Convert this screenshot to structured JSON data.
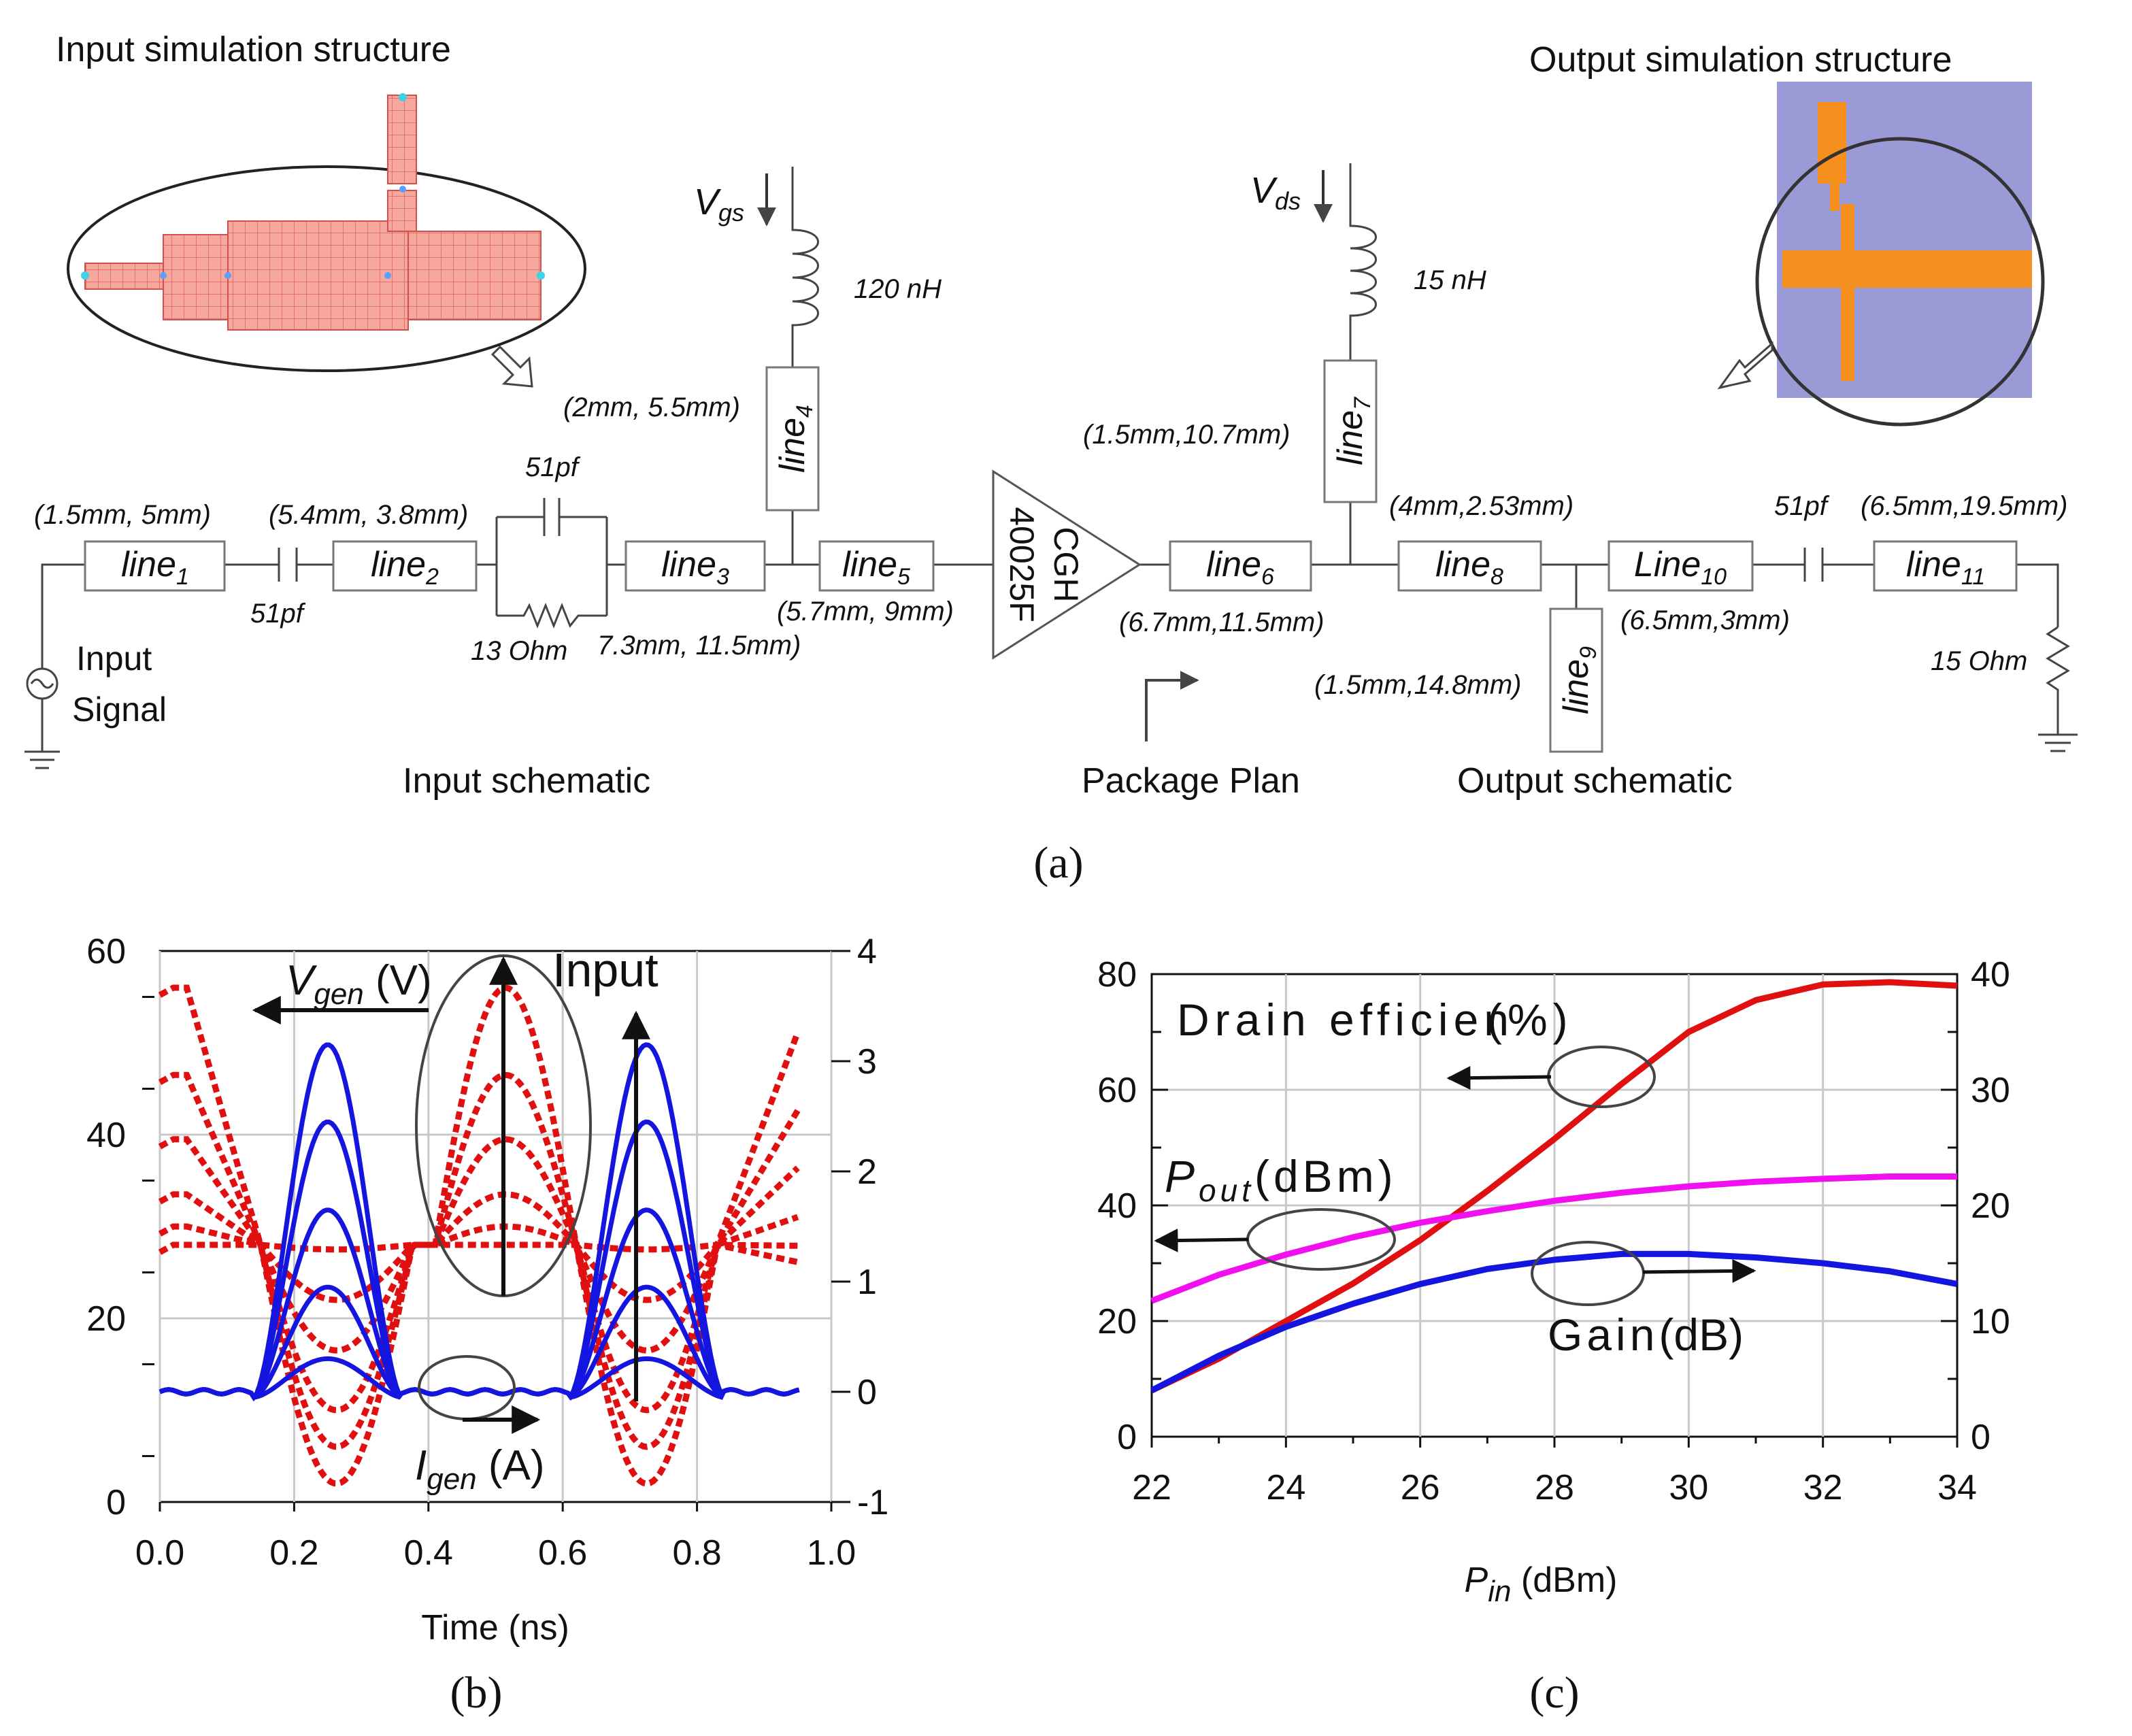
{
  "panel_a": {
    "caption": "(a)",
    "title_input_sim": "Input simulation structure",
    "title_output_sim": "Output simulation structure",
    "label_input_schematic": "Input schematic",
    "label_package_plan": "Package Plan",
    "label_output_schematic": "Output schematic",
    "input_signal_1": "Input",
    "input_signal_2": "Signal",
    "vgs": "V",
    "vgs_sub": "gs",
    "vds": "V",
    "vds_sub": "ds",
    "l_120nh": "120 nH",
    "l_15nh": "15 nH",
    "cap_51pf": "51pf",
    "res_13": "13 Ohm",
    "res_15": "15 Ohm",
    "transistor_1": "CGH",
    "transistor_2": "40025F",
    "lines": {
      "line1": {
        "name": "line",
        "sub": "1",
        "dim": "(1.5mm, 5mm)"
      },
      "line2": {
        "name": "line",
        "sub": "2",
        "dim": "(5.4mm, 3.8mm)"
      },
      "line3": {
        "name": "line",
        "sub": "3",
        "dim": "7.3mm, 11.5mm)"
      },
      "line4": {
        "name": "line",
        "sub": "4",
        "dim": "(2mm, 5.5mm)"
      },
      "line5": {
        "name": "line",
        "sub": "5",
        "dim": "(5.7mm, 9mm)"
      },
      "line6": {
        "name": "line",
        "sub": "6",
        "dim": "(6.7mm,11.5mm)"
      },
      "line7": {
        "name": "line",
        "sub": "7",
        "dim": "(1.5mm,10.7mm)"
      },
      "line8": {
        "name": "line",
        "sub": "8",
        "dim": "(4mm,2.53mm)"
      },
      "line9": {
        "name": "line",
        "sub": "9",
        "dim": "(1.5mm,14.8mm)"
      },
      "line10": {
        "name": "Line",
        "sub": "10",
        "dim": "(6.5mm,3mm)"
      },
      "line11": {
        "name": "line",
        "sub": "11",
        "dim": "(6.5mm,19.5mm)"
      }
    }
  },
  "chart_data": [
    {
      "id": "b",
      "type": "line",
      "caption": "(b)",
      "xlabel": "Time (ns)",
      "xlim": [
        0.0,
        1.0
      ],
      "xticks": [
        "0.0",
        "0.2",
        "0.4",
        "0.6",
        "0.8",
        "1.0"
      ],
      "y_left_lim": [
        0,
        60
      ],
      "y_left_ticks": [
        "0",
        "20",
        "40",
        "60"
      ],
      "y_right_lim": [
        -1,
        4
      ],
      "y_right_ticks": [
        "-1",
        "0",
        "1",
        "2",
        "3",
        "4"
      ],
      "annotations": {
        "vgen": "V",
        "vgen_sub": "gen",
        "vgen_unit": " (V)",
        "igen": "I",
        "igen_sub": "gen",
        "igen_unit": " (A)",
        "input": "Input"
      },
      "colors": {
        "voltage": "#e01010",
        "current": "#1515e0"
      },
      "voltage_peaks": [
        56,
        46.5,
        39.5,
        33.5,
        30,
        28
      ],
      "voltage_mins": [
        2,
        6,
        10,
        16.5,
        22,
        27.5
      ],
      "current_peaks": [
        3.2,
        2.5,
        1.7,
        1.0,
        0.35
      ]
    },
    {
      "id": "c",
      "type": "line",
      "caption": "(c)",
      "xlabel": "P",
      "xlabel_sub": "in",
      "xlabel_unit": " (dBm)",
      "x": [
        22,
        23,
        24,
        25,
        26,
        27,
        28,
        29,
        30,
        31,
        32,
        33,
        34
      ],
      "xticks": [
        "22",
        "24",
        "26",
        "28",
        "30",
        "32",
        "34"
      ],
      "y_left_lim": [
        0,
        80
      ],
      "y_left_ticks": [
        "0",
        "20",
        "40",
        "60",
        "80"
      ],
      "y_right_lim": [
        0,
        40
      ],
      "y_right_ticks": [
        "0",
        "10",
        "20",
        "30",
        "40"
      ],
      "series": [
        {
          "name": "Drain efficiency (%)",
          "axis": "left",
          "color": "#e01010",
          "values": [
            8,
            13.5,
            20,
            26.5,
            34,
            42.5,
            51.5,
            61,
            70,
            75.5,
            78.2,
            78.6,
            78
          ]
        },
        {
          "name": "Pout (dBm)",
          "axis": "left",
          "color": "#f010f0",
          "values": [
            23.5,
            28,
            31.5,
            34.5,
            37,
            39,
            40.8,
            42.2,
            43.3,
            44.1,
            44.6,
            45,
            45
          ]
        },
        {
          "name": "Gain (dB)",
          "axis": "right",
          "color": "#1515e0",
          "values": [
            4,
            7,
            9.5,
            11.5,
            13.2,
            14.5,
            15.3,
            15.8,
            15.8,
            15.5,
            15,
            14.3,
            13.2
          ]
        }
      ],
      "annotations": {
        "eff": "Drain efficien",
        "eff_unit": "(%)",
        "pout": "P",
        "pout_sub": "out",
        "pout_unit": "(dBm)",
        "gain": "Gain",
        "gain_unit": "(dB)"
      }
    }
  ]
}
